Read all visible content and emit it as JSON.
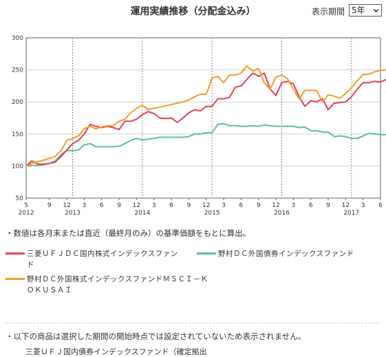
{
  "header": {
    "title": "運用実績推移（分配金込み）",
    "period_label": "表示期間",
    "period_value": "5年"
  },
  "chart_data": {
    "type": "line",
    "ylim": [
      50,
      300
    ],
    "yticks": [
      50,
      100,
      150,
      200,
      250,
      300
    ],
    "xlim": [
      "2012-05",
      "2017-06"
    ],
    "month_ticks": [
      {
        "x": "2012-05",
        "label": "5"
      },
      {
        "x": "2012-09",
        "label": "9"
      },
      {
        "x": "2012-12",
        "label": "12"
      },
      {
        "x": "2013-03",
        "label": "3"
      },
      {
        "x": "2013-06",
        "label": "6"
      },
      {
        "x": "2013-09",
        "label": "9"
      },
      {
        "x": "2013-12",
        "label": "12"
      },
      {
        "x": "2014-03",
        "label": "3"
      },
      {
        "x": "2014-06",
        "label": "6"
      },
      {
        "x": "2014-09",
        "label": "9"
      },
      {
        "x": "2014-12",
        "label": "12"
      },
      {
        "x": "2015-03",
        "label": "3"
      },
      {
        "x": "2015-06",
        "label": "6"
      },
      {
        "x": "2015-09",
        "label": "9"
      },
      {
        "x": "2015-12",
        "label": "12"
      },
      {
        "x": "2016-03",
        "label": "3"
      },
      {
        "x": "2016-06",
        "label": "6"
      },
      {
        "x": "2016-09",
        "label": "9"
      },
      {
        "x": "2016-12",
        "label": "12"
      },
      {
        "x": "2017-03",
        "label": "3"
      },
      {
        "x": "2017-06",
        "label": "6"
      }
    ],
    "year_ticks": [
      {
        "x": "2012-05",
        "label": "2012"
      },
      {
        "x": "2013-01",
        "label": "2013"
      },
      {
        "x": "2014-01",
        "label": "2014"
      },
      {
        "x": "2015-01",
        "label": "2015"
      },
      {
        "x": "2016-01",
        "label": "2016"
      },
      {
        "x": "2017-01",
        "label": "2017"
      }
    ],
    "grid": "dashed vertical at year boundaries",
    "series": [
      {
        "name": "三菱ＵＦＪＤＣ国内株式インデックスファンド",
        "color": "#e5404e",
        "start": "2012-05",
        "values": [
          100,
          108,
          103,
          103,
          104,
          106,
          115,
          125,
          135,
          140,
          150,
          165,
          162,
          160,
          162,
          160,
          157,
          170,
          170,
          173,
          180,
          185,
          182,
          175,
          174,
          175,
          168,
          175,
          183,
          188,
          186,
          193,
          193,
          205,
          205,
          207,
          223,
          225,
          235,
          245,
          240,
          245,
          220,
          210,
          230,
          232,
          228,
          208,
          193,
          202,
          200,
          205,
          188,
          198,
          199,
          200,
          208,
          220,
          230,
          230,
          232,
          231,
          235,
          240,
          246
        ]
      },
      {
        "name": "野村ＤＣ外国債券インデックスファンド",
        "color": "#5bc08c",
        "start": "2012-05",
        "values": [
          100,
          101,
          101,
          102,
          104,
          108,
          118,
          124,
          124,
          125,
          133,
          135,
          130,
          130,
          130,
          130,
          131,
          135,
          140,
          143,
          141,
          142,
          143,
          145,
          145,
          145,
          145,
          145,
          146,
          150,
          150,
          152,
          152,
          165,
          166,
          163,
          163,
          162,
          162,
          163,
          162,
          164,
          163,
          162,
          162,
          162,
          162,
          160,
          161,
          155,
          155,
          153,
          153,
          146,
          147,
          146,
          143,
          143,
          147,
          151,
          150,
          149,
          149,
          150,
          152
        ]
      },
      {
        "name": "野村ＤＣ外国株式インデックスファンドＭＳＣＩ－ＫＯＫＵＳＡＩ",
        "color": "#f39c25",
        "start": "2012-05",
        "values": [
          100,
          104,
          107,
          109,
          112,
          115,
          124,
          140,
          143,
          147,
          158,
          162,
          158,
          161,
          163,
          163,
          170,
          173,
          183,
          190,
          195,
          188,
          190,
          192,
          194,
          196,
          198,
          200,
          203,
          208,
          212,
          212,
          237,
          240,
          230,
          242,
          242,
          245,
          256,
          248,
          252,
          230,
          220,
          239,
          242,
          236,
          220,
          205,
          218,
          218,
          218,
          200,
          211,
          209,
          206,
          213,
          222,
          233,
          243,
          243,
          247,
          249,
          250,
          255,
          257
        ]
      }
    ]
  },
  "notes": {
    "basis": "・数値は各月末または直近（最終月のみ）の基準価額をもとに算出。",
    "not_shown": "・以下の商品は選択した期間の開始時点では設定されていないため表示されません。",
    "unlisted_item": "三菱ＵＦＪ国内債券インデックスファンド（確定拠出"
  },
  "legend": {
    "item1": "三菱ＵＦＪＤＣ国内株式インデックスファンド",
    "item2": "野村ＤＣ外国債券インデックスファンド",
    "item3": "野村ＤＣ外国株式インデックスファンドＭＳＣＩ－Ｋ\nＯＫＵＳＡＩ"
  }
}
